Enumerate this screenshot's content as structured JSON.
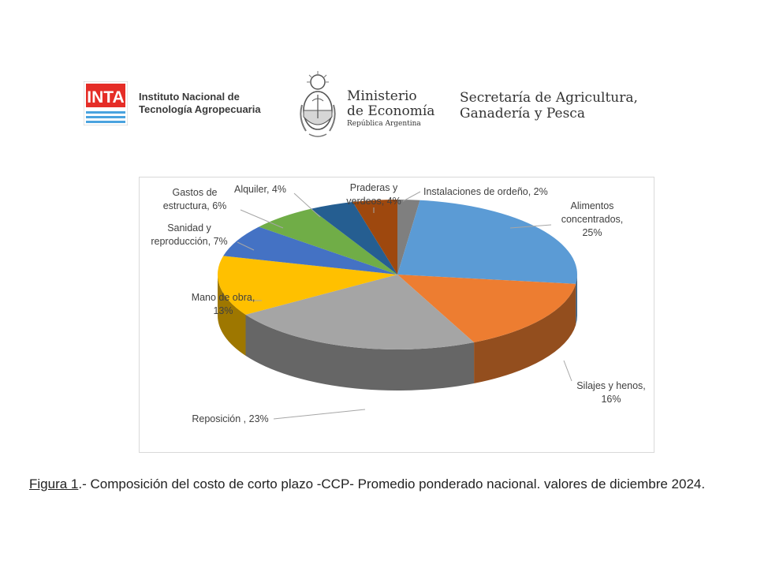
{
  "header": {
    "inta": {
      "logo_text": "INTA",
      "name_line1": "Instituto Nacional de",
      "name_line2": "Tecnología Agropecuaria"
    },
    "ministerio": {
      "title_line1": "Ministerio",
      "title_line2": "de Economía",
      "subtitle": "República Argentina"
    },
    "secretaria": {
      "line1": "Secretaría de Agricultura,",
      "line2": "Ganadería y Pesca"
    }
  },
  "chart_data": {
    "type": "pie",
    "title": "",
    "style": "3d",
    "slices": [
      {
        "label": "Instalaciones de ordeño, 2%",
        "value": 2,
        "color": "#7f7f7f"
      },
      {
        "label": "Alimentos concentrados, 25%",
        "value": 25,
        "color": "#5b9bd5"
      },
      {
        "label": "Silajes y henos, 16%",
        "value": 16,
        "color": "#ed7d31"
      },
      {
        "label": "Reposición , 23%",
        "value": 23,
        "color": "#a5a5a5"
      },
      {
        "label": "Mano de obra, 13%",
        "value": 13,
        "color": "#ffc000"
      },
      {
        "label": "Sanidad y reproducción, 7%",
        "value": 7,
        "color": "#4472c4"
      },
      {
        "label": "Gastos de estructura, 6%",
        "value": 6,
        "color": "#70ad47"
      },
      {
        "label": "Alquiler, 4%",
        "value": 4,
        "color": "#255e91"
      },
      {
        "label": "Praderas y verdeos, 4%",
        "value": 4,
        "color": "#9e480e"
      }
    ],
    "label_lines": {
      "Instalaciones de ordeño, 2%": [
        "Instalaciones de ordeño, 2%"
      ],
      "Alimentos concentrados, 25%": [
        "Alimentos",
        "concentrados,",
        "25%"
      ],
      "Silajes y henos, 16%": [
        "Silajes y henos,",
        "16%"
      ],
      "Reposición , 23%": [
        "Reposición , 23%"
      ],
      "Mano de obra, 13%": [
        "Mano de obra,",
        "13%"
      ],
      "Sanidad y reproducción, 7%": [
        "Sanidad y",
        "reproducción, 7%"
      ],
      "Gastos de estructura, 6%": [
        "Gastos de",
        "estructura, 6%"
      ],
      "Alquiler, 4%": [
        "Alquiler, 4%"
      ],
      "Praderas y verdeos, 4%": [
        "Praderas y",
        "verdeos, 4%"
      ]
    }
  },
  "caption": {
    "figure_ref": "Figura 1",
    "text": ".- Composición del costo de corto plazo -CCP-   Promedio ponderado nacional. valores de diciembre 2024."
  }
}
